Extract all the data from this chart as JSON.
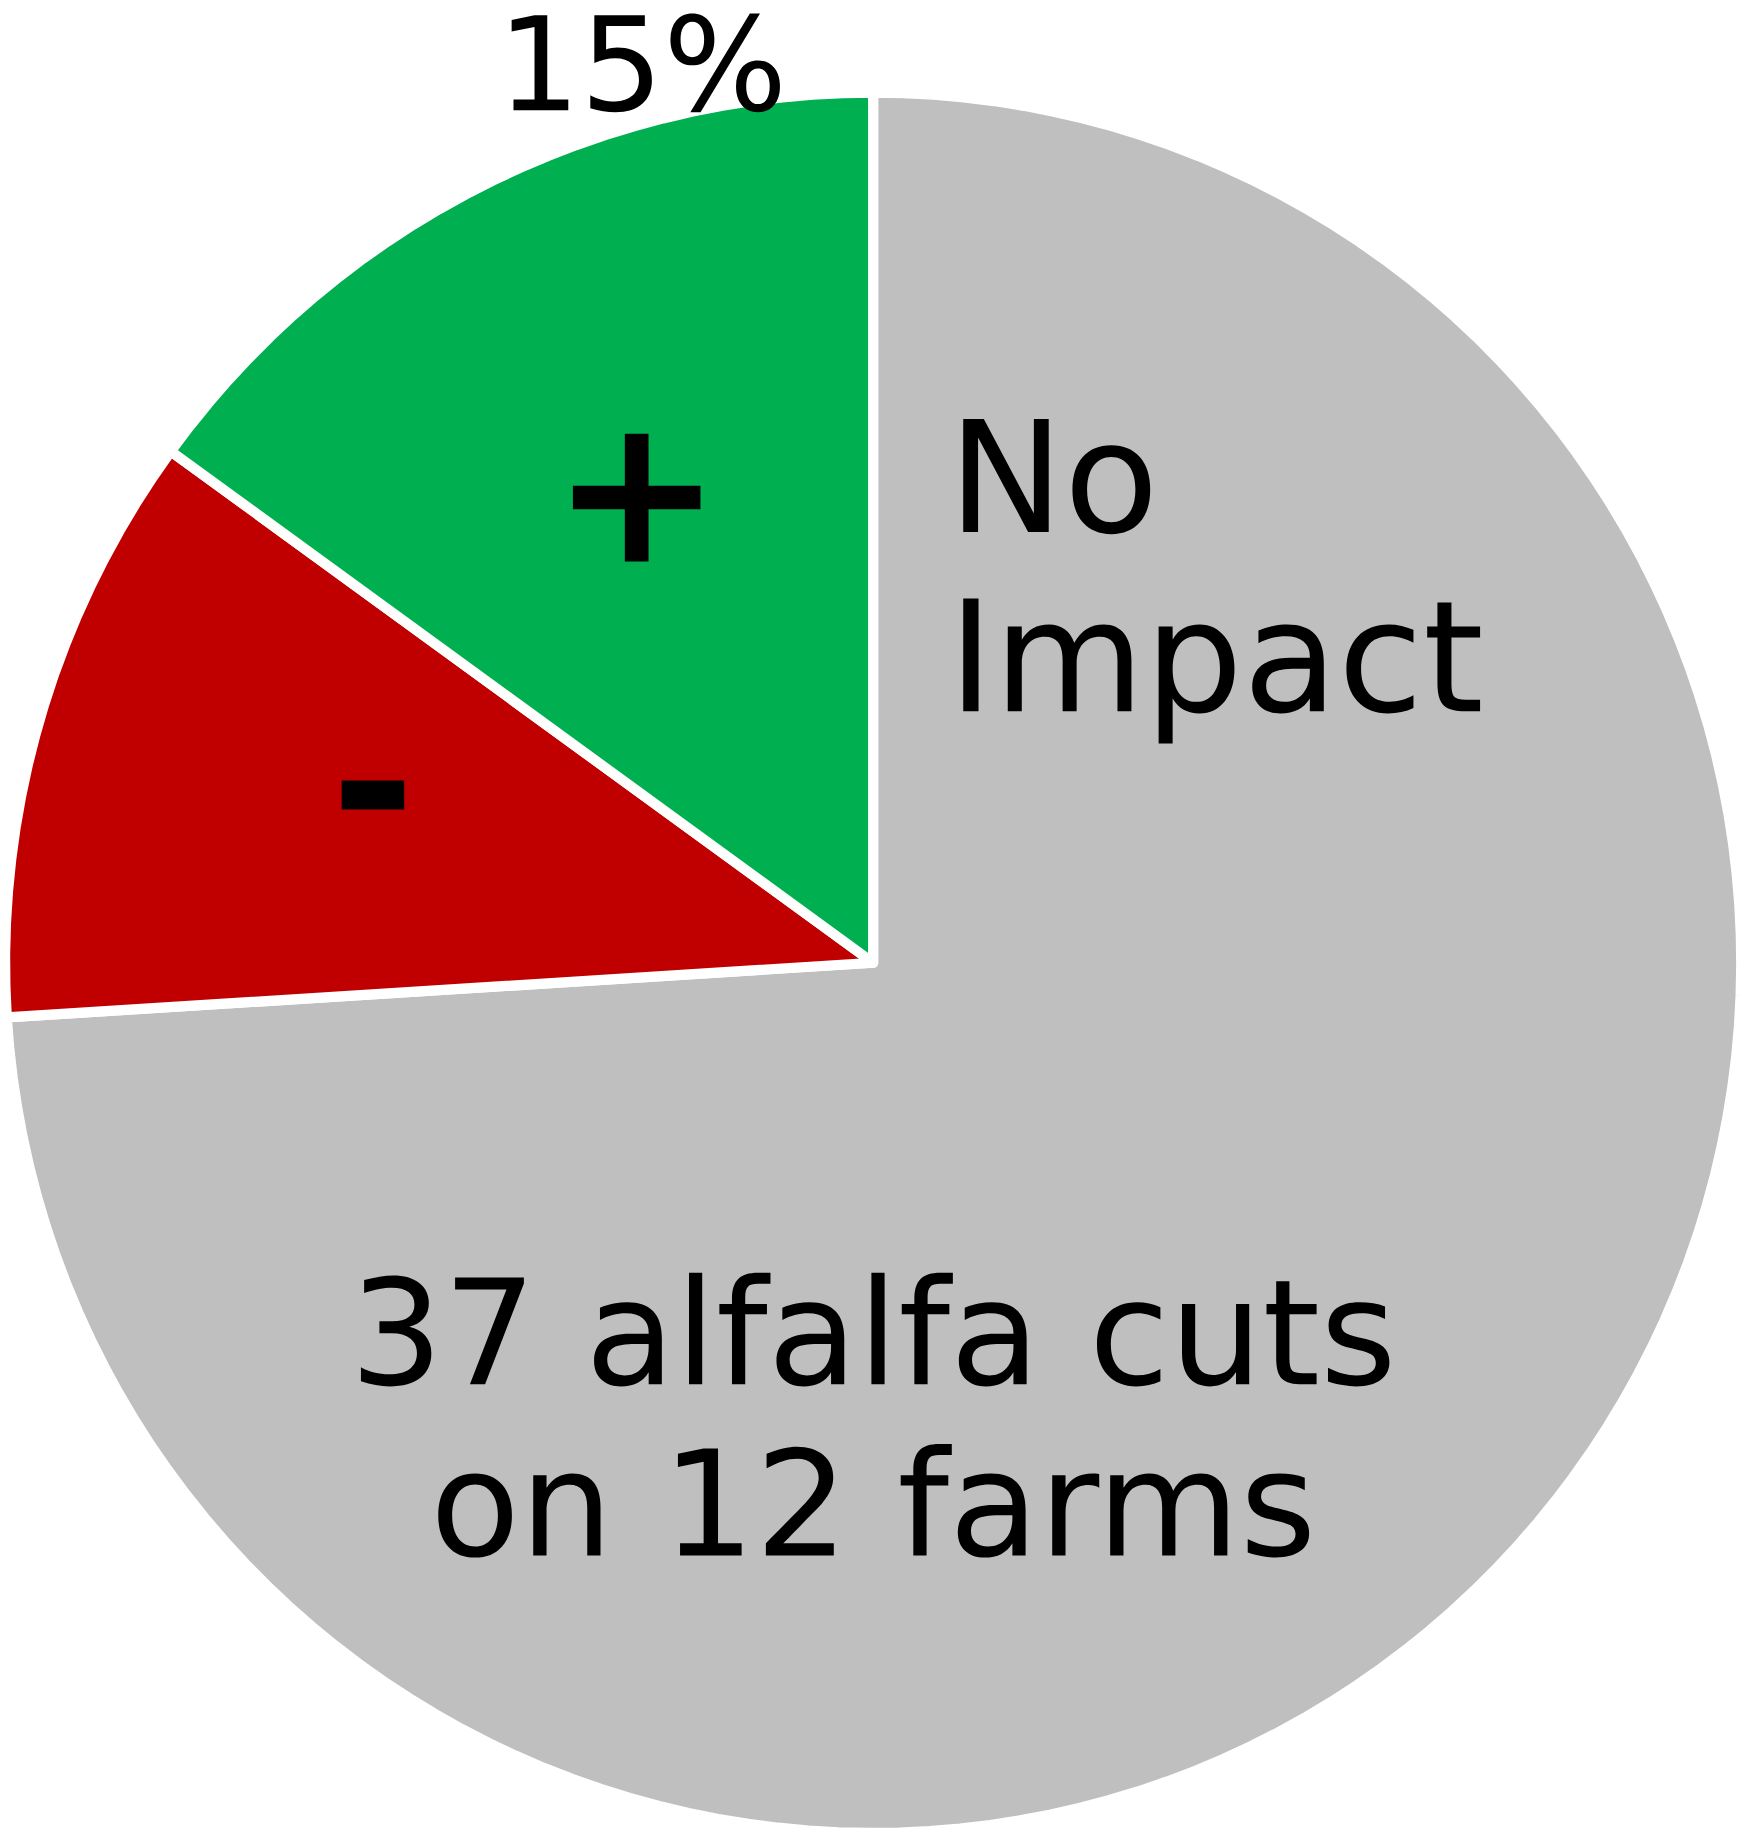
{
  "chart_data": {
    "type": "pie",
    "categories": [
      "No Impact",
      "-",
      "+"
    ],
    "values": [
      74,
      11,
      15
    ],
    "colors": [
      "#bfbfbf",
      "#c00000",
      "#00b050"
    ],
    "value_labels": [
      null,
      null,
      "15%"
    ],
    "annotations": [
      "37 alfalfa cuts on 12 farms"
    ]
  }
}
